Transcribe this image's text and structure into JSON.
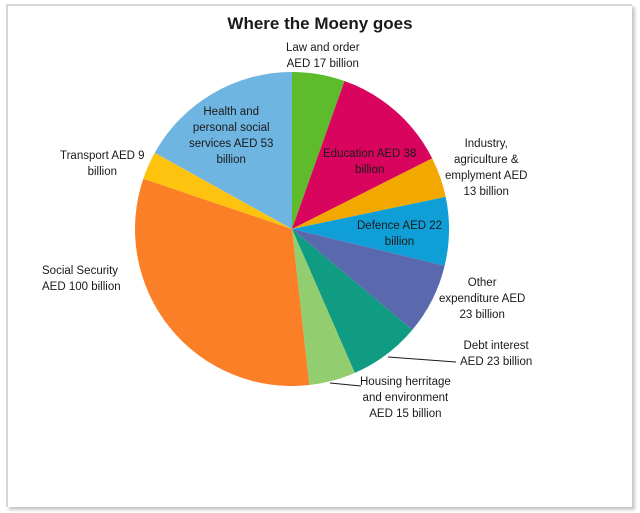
{
  "chart": {
    "title": "Where the Moeny goes"
  },
  "labels": {
    "law": [
      "Law and order",
      "AED 17 billion"
    ],
    "education": [
      "Education AED 38",
      "billion"
    ],
    "industry": [
      "Industry,",
      "agriculture &",
      "emplyment AED",
      "13 billion"
    ],
    "defence": [
      "Defence AED 22",
      "billion"
    ],
    "other": [
      "Other",
      "expenditure AED",
      "23 billion"
    ],
    "debt": [
      "Debt interest",
      "AED 23 billion"
    ],
    "housing": [
      "Housing herritage",
      "and environment",
      "AED 15 billion"
    ],
    "social": [
      "Social Security",
      "AED 100 billion"
    ],
    "transport": [
      "Transport AED 9",
      "billion"
    ],
    "health": [
      "Health and",
      "personal social",
      "services AED 53",
      "billion"
    ]
  },
  "chart_data": {
    "type": "pie",
    "title": "Where the Moeny goes",
    "unit": "AED billion",
    "start_angle": "12 o'clock, clockwise",
    "categories": [
      "Law and order",
      "Education",
      "Industry, agriculture & emplyment",
      "Defence",
      "Other expenditure",
      "Debt interest",
      "Housing herritage and environment",
      "Social Security",
      "Transport",
      "Health and personal social services"
    ],
    "values": [
      17,
      38,
      13,
      22,
      23,
      23,
      15,
      100,
      9,
      53
    ],
    "colors": [
      "#5DBB2C",
      "#D9045E",
      "#F3A800",
      "#0F9FD6",
      "#5A68AE",
      "#0F9C82",
      "#92CD70",
      "#FB7F26",
      "#FDC30E",
      "#6EB5E1"
    ],
    "legend": "none (data labels on/around slices)"
  }
}
